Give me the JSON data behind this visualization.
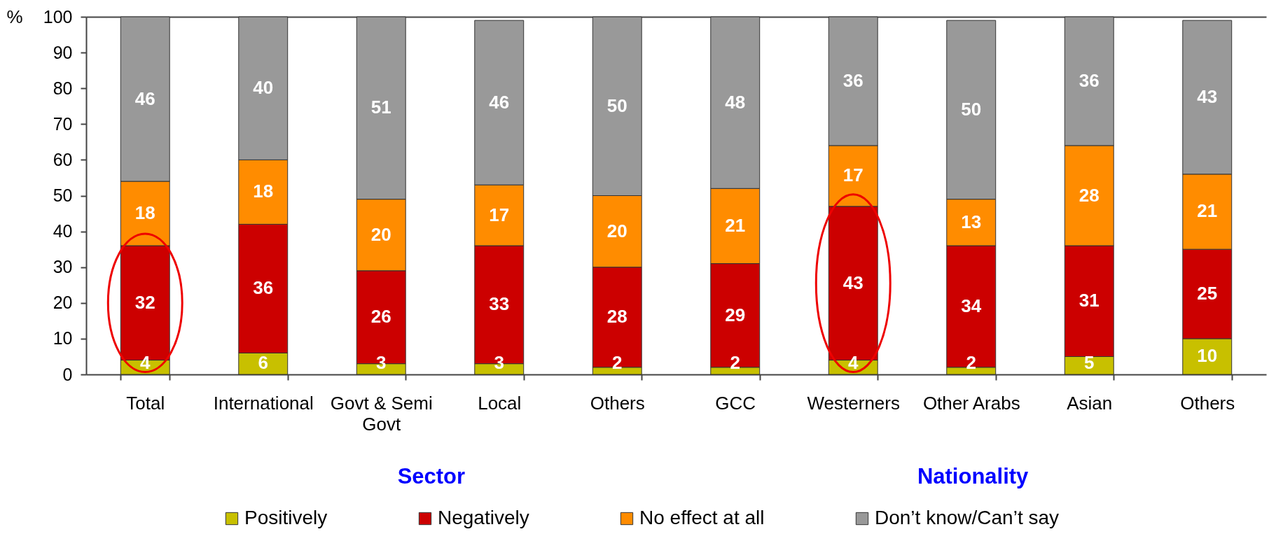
{
  "chart_data": {
    "type": "bar",
    "stacked": true,
    "ylabel": "%",
    "categories": [
      "Total",
      "International",
      "Govt & Semi Govt",
      "Local",
      "Others",
      "GCC",
      "Westerners",
      "Other Arabs",
      "Asian",
      "Others"
    ],
    "series": [
      {
        "name": "Positively",
        "color": "#c8c000",
        "values": [
          4,
          6,
          3,
          3,
          2,
          2,
          4,
          2,
          5,
          10
        ]
      },
      {
        "name": "Negatively",
        "color": "#cc0000",
        "values": [
          32,
          36,
          26,
          33,
          28,
          29,
          43,
          34,
          31,
          25
        ]
      },
      {
        "name": "No effect at all",
        "color": "#ff8c00",
        "values": [
          18,
          18,
          20,
          17,
          20,
          21,
          17,
          13,
          28,
          21
        ]
      },
      {
        "name": "Don’t know/Can’t say",
        "color": "#999999",
        "values": [
          46,
          40,
          51,
          46,
          50,
          48,
          36,
          50,
          36,
          43
        ]
      }
    ],
    "ylim": [
      0,
      100
    ],
    "yticks": [
      0,
      10,
      20,
      30,
      40,
      50,
      60,
      70,
      80,
      90,
      100
    ],
    "data_labels": true,
    "legend": "bottom",
    "annotations": [
      "Sector",
      "Nationality"
    ]
  }
}
